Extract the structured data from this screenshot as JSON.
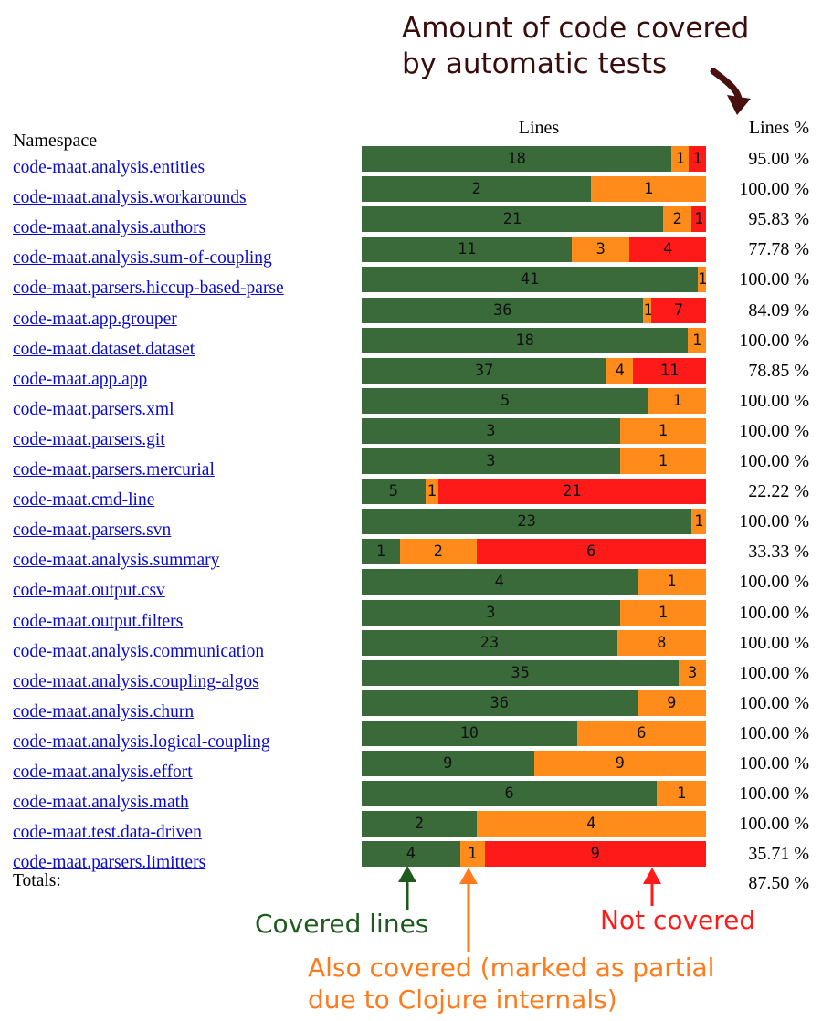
{
  "annotations": {
    "title_line1": "Amount of code covered",
    "title_line2": "by automatic tests",
    "covered": "Covered lines",
    "not_covered": "Not covered",
    "partial_line1": "Also covered (marked as partial",
    "partial_line2": "due to Clojure internals)"
  },
  "colors": {
    "covered": "#3a6a3a",
    "partial": "#ff8c1a",
    "not_covered": "#ff1a1a",
    "link": "#0a0acb",
    "title_arrow": "#4a0f0f",
    "covered_label": "#1e5a1e"
  },
  "chart_data": {
    "type": "bar",
    "stacked": true,
    "orientation": "horizontal",
    "headers": {
      "namespace": "Namespace",
      "lines": "Lines",
      "lines_pct": "Lines %"
    },
    "series": [
      {
        "name": "Covered lines"
      },
      {
        "name": "Also covered (partial)"
      },
      {
        "name": "Not covered"
      }
    ],
    "rows": [
      {
        "namespace": "code-maat.analysis.entities",
        "covered": 18,
        "partial": 1,
        "not": 1,
        "pct": "95.00 %"
      },
      {
        "namespace": "code-maat.analysis.workarounds",
        "covered": 2,
        "partial": 1,
        "not": 0,
        "pct": "100.00 %"
      },
      {
        "namespace": "code-maat.analysis.authors",
        "covered": 21,
        "partial": 2,
        "not": 1,
        "pct": "95.83 %"
      },
      {
        "namespace": "code-maat.analysis.sum-of-coupling",
        "covered": 11,
        "partial": 3,
        "not": 4,
        "pct": "77.78 %"
      },
      {
        "namespace": "code-maat.parsers.hiccup-based-parse",
        "covered": 41,
        "partial": 1,
        "not": 0,
        "pct": "100.00 %"
      },
      {
        "namespace": "code-maat.app.grouper",
        "covered": 36,
        "partial": 1,
        "not": 7,
        "pct": "84.09 %"
      },
      {
        "namespace": "code-maat.dataset.dataset",
        "covered": 18,
        "partial": 1,
        "not": 0,
        "pct": "100.00 %"
      },
      {
        "namespace": "code-maat.app.app",
        "covered": 37,
        "partial": 4,
        "not": 11,
        "pct": "78.85 %"
      },
      {
        "namespace": "code-maat.parsers.xml",
        "covered": 5,
        "partial": 1,
        "not": 0,
        "pct": "100.00 %"
      },
      {
        "namespace": "code-maat.parsers.git",
        "covered": 3,
        "partial": 1,
        "not": 0,
        "pct": "100.00 %"
      },
      {
        "namespace": "code-maat.parsers.mercurial",
        "covered": 3,
        "partial": 1,
        "not": 0,
        "pct": "100.00 %"
      },
      {
        "namespace": "code-maat.cmd-line",
        "covered": 5,
        "partial": 1,
        "not": 21,
        "pct": "22.22 %"
      },
      {
        "namespace": "code-maat.parsers.svn",
        "covered": 23,
        "partial": 1,
        "not": 0,
        "pct": "100.00 %"
      },
      {
        "namespace": "code-maat.analysis.summary",
        "covered": 1,
        "partial": 2,
        "not": 6,
        "pct": "33.33 %"
      },
      {
        "namespace": "code-maat.output.csv",
        "covered": 4,
        "partial": 1,
        "not": 0,
        "pct": "100.00 %"
      },
      {
        "namespace": "code-maat.output.filters",
        "covered": 3,
        "partial": 1,
        "not": 0,
        "pct": "100.00 %"
      },
      {
        "namespace": "code-maat.analysis.communication",
        "covered": 23,
        "partial": 8,
        "not": 0,
        "pct": "100.00 %"
      },
      {
        "namespace": "code-maat.analysis.coupling-algos",
        "covered": 35,
        "partial": 3,
        "not": 0,
        "pct": "100.00 %"
      },
      {
        "namespace": "code-maat.analysis.churn",
        "covered": 36,
        "partial": 9,
        "not": 0,
        "pct": "100.00 %"
      },
      {
        "namespace": "code-maat.analysis.logical-coupling",
        "covered": 10,
        "partial": 6,
        "not": 0,
        "pct": "100.00 %"
      },
      {
        "namespace": "code-maat.analysis.effort",
        "covered": 9,
        "partial": 9,
        "not": 0,
        "pct": "100.00 %"
      },
      {
        "namespace": "code-maat.analysis.math",
        "covered": 6,
        "partial": 1,
        "not": 0,
        "pct": "100.00 %"
      },
      {
        "namespace": "code-maat.test.data-driven",
        "covered": 2,
        "partial": 4,
        "not": 0,
        "pct": "100.00 %"
      },
      {
        "namespace": "code-maat.parsers.limitters",
        "covered": 4,
        "partial": 1,
        "not": 9,
        "pct": "35.71 %"
      }
    ],
    "totals": {
      "label": "Totals:",
      "pct": "87.50 %"
    }
  }
}
